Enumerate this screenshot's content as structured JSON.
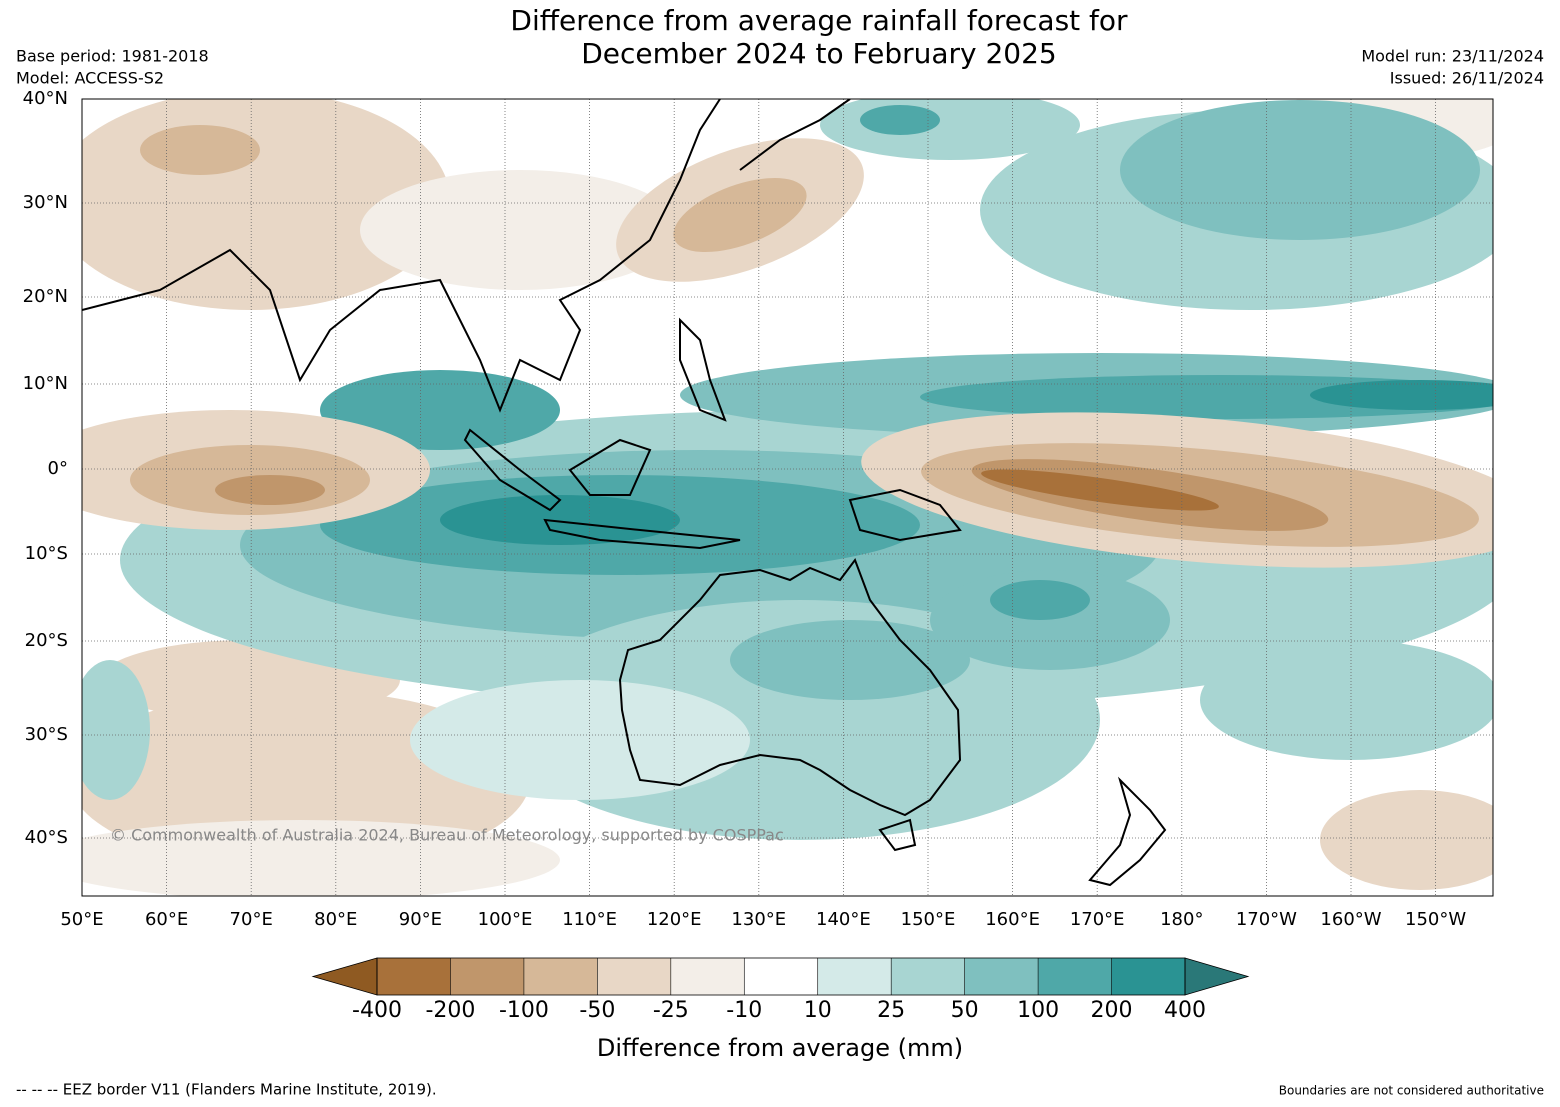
{
  "header": {
    "title_lines": [
      "Difference from average rainfall forecast for",
      "December 2024 to February 2025"
    ],
    "base_period": "Base period: 1981-2018",
    "model": "Model: ACCESS-S2",
    "model_run": "Model run: 23/11/2024",
    "issued": "Issued: 26/11/2024"
  },
  "map": {
    "lat_labels": [
      "40°N",
      "30°N",
      "20°N",
      "10°N",
      "0°",
      "10°S",
      "20°S",
      "30°S",
      "40°S"
    ],
    "lon_labels": [
      "50°E",
      "60°E",
      "70°E",
      "80°E",
      "90°E",
      "100°E",
      "110°E",
      "120°E",
      "130°E",
      "140°E",
      "150°E",
      "160°E",
      "170°E",
      "180°",
      "170°W",
      "160°W",
      "150°W"
    ],
    "copyright": "© Commonwealth of Australia 2024, Bureau of Meteorology, supported by COSPPac"
  },
  "colorbar": {
    "ticks": [
      -400,
      -200,
      -100,
      -50,
      -25,
      -10,
      10,
      25,
      50,
      100,
      200,
      400
    ],
    "colors": [
      "#a8713a",
      "#c0966b",
      "#d6b898",
      "#e8d7c6",
      "#f3eee8",
      "#ffffff",
      "#d4eae8",
      "#a8d5d2",
      "#7fc0bf",
      "#4fa8a8",
      "#2a9393"
    ],
    "extend_colors": [
      "#8f5a22",
      "#2a7878"
    ],
    "label": "Difference from average (mm)"
  },
  "footer": {
    "eez_note": "--  --  -- EEZ border V11 (Flanders Marine Institute, 2019).",
    "boundaries_note": "Boundaries are not considered authoritative"
  }
}
